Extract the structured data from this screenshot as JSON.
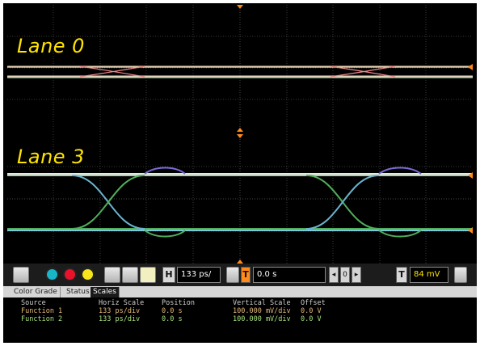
{
  "waveform": {
    "lane0_label": "Lane 0",
    "lane3_label": "Lane 3"
  },
  "toolbar": {
    "horiz_icon": "H",
    "horiz_scale": "133 ps/",
    "position_marker": "T",
    "position_value": "0.0 s",
    "trigger_icon": "T",
    "trigger_level": "84 mV"
  },
  "tabs": [
    {
      "label": "Color Grade",
      "active": false
    },
    {
      "label": "Status",
      "active": false
    },
    {
      "label": "Scales",
      "active": true
    }
  ],
  "scales_table": {
    "headers": [
      "Source",
      "Horiz Scale",
      "Position",
      "Vertical Scale",
      "Offset"
    ],
    "rows": [
      [
        "Function 1",
        "133 ps/div",
        "0.0 s",
        "100.000 mV/div",
        "0.0 V"
      ],
      [
        "Function 2",
        "133 ps/div",
        "0.0 s",
        "100.000 mV/div",
        "0.0 V"
      ]
    ]
  },
  "colors": {
    "lane_label": "#ffe400",
    "function1_text": "#e5b97a",
    "function2_text": "#a6e07a",
    "marker": "#ff8a1c"
  },
  "icons": [
    "scroll-arrows-icon",
    "color-circle-icons",
    "print-icon",
    "brightness-icon",
    "math-sine-icon",
    "trigger-icon",
    "spin-arrows-icon"
  ]
}
